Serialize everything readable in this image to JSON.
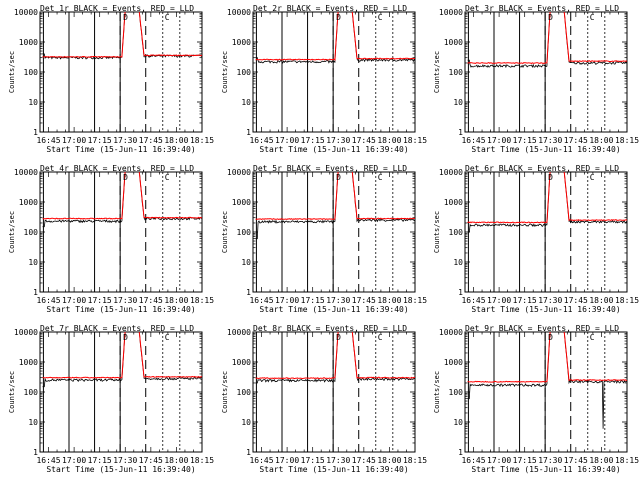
{
  "chart_data": {
    "type": "line",
    "grid": {
      "rows": 3,
      "cols": 3
    },
    "y_scale": "log",
    "ylim": [
      1,
      10000
    ],
    "y_tick_labels": [
      "1",
      "10",
      "100",
      "1000",
      "10000"
    ],
    "ylabel": "Counts/sec",
    "colors": {
      "events": "#000000",
      "lld": "#ff0000",
      "background": "#ffffff"
    },
    "panels": [
      {
        "title": "Det 1r BLACK = Events, RED = LLD",
        "xlabel": "Start Time (15-Jun-11 16:39:40)",
        "x_tick_labels": [
          "16:45",
          "17:00",
          "17:15",
          "17:30",
          "17:45",
          "18:00",
          "18:15"
        ],
        "xlim_min": [
          0,
          95
        ],
        "solid_markers_min": [
          2,
          17,
          32,
          47
        ],
        "long_dash_markers_min": [
          47,
          62
        ],
        "short_dash_markers_min": [
          72,
          82
        ],
        "symbols": [
          "D",
          "C"
        ],
        "baseline": {
          "events_pre": 300,
          "lld_pre": 320,
          "events_post": 340,
          "lld_post": 360,
          "events_start": 400
        },
        "peak": 13000,
        "rise_min": [
          48,
          50
        ],
        "fall_min": [
          58,
          61
        ]
      },
      {
        "title": "Det 2r BLACK = Events, RED = LLD",
        "xlabel": "Start Time (15-Jun-11 16:39:40)",
        "x_tick_labels": [
          "16:45",
          "17:00",
          "17:15",
          "17:30",
          "17:45",
          "18:00",
          "18:15"
        ],
        "xlim_min": [
          0,
          95
        ],
        "solid_markers_min": [
          2,
          17,
          32,
          47
        ],
        "long_dash_markers_min": [
          47,
          62
        ],
        "short_dash_markers_min": [
          72,
          82
        ],
        "symbols": [
          "D",
          "C"
        ],
        "baseline": {
          "events_pre": 220,
          "lld_pre": 260,
          "events_post": 250,
          "lld_post": 280,
          "events_start": 300
        },
        "peak": 13000,
        "rise_min": [
          48,
          50
        ],
        "fall_min": [
          58,
          61
        ]
      },
      {
        "title": "Det 3r BLACK = Events, RED = LLD",
        "xlabel": "Start Time (15-Jun-11 16:39:40)",
        "x_tick_labels": [
          "16:45",
          "17:00",
          "17:15",
          "17:30",
          "17:45",
          "18:00",
          "18:15"
        ],
        "xlim_min": [
          0,
          95
        ],
        "solid_markers_min": [
          2,
          17,
          32,
          47
        ],
        "long_dash_markers_min": [
          47,
          62
        ],
        "short_dash_markers_min": [
          72,
          82
        ],
        "symbols": [
          "D",
          "C"
        ],
        "baseline": {
          "events_pre": 160,
          "lld_pre": 200,
          "events_post": 200,
          "lld_post": 230,
          "events_start": 250
        },
        "peak": 13000,
        "rise_min": [
          48,
          50
        ],
        "fall_min": [
          58,
          61
        ]
      },
      {
        "title": "Det 4r BLACK = Events, RED = LLD",
        "xlabel": "Start Time (15-Jun-11 16:39:40)",
        "x_tick_labels": [
          "16:45",
          "17:00",
          "17:15",
          "17:30",
          "17:45",
          "18:00",
          "18:15"
        ],
        "xlim_min": [
          0,
          95
        ],
        "solid_markers_min": [
          2,
          17,
          32,
          47
        ],
        "long_dash_markers_min": [
          47,
          62
        ],
        "short_dash_markers_min": [
          72,
          82
        ],
        "symbols": [
          "D",
          "C"
        ],
        "baseline": {
          "events_pre": 230,
          "lld_pre": 280,
          "events_post": 280,
          "lld_post": 300,
          "events_start": 150
        },
        "peak": 13000,
        "rise_min": [
          48,
          50
        ],
        "fall_min": [
          58,
          61
        ]
      },
      {
        "title": "Det 5r BLACK = Events, RED = LLD",
        "xlabel": "Start Time (15-Jun-11 16:39:40)",
        "x_tick_labels": [
          "16:45",
          "17:00",
          "17:15",
          "17:30",
          "17:45",
          "18:00",
          "18:15"
        ],
        "xlim_min": [
          0,
          95
        ],
        "solid_markers_min": [
          2,
          17,
          32,
          47
        ],
        "long_dash_markers_min": [
          47,
          62
        ],
        "short_dash_markers_min": [
          72,
          82
        ],
        "symbols": [
          "D",
          "C"
        ],
        "baseline": {
          "events_pre": 220,
          "lld_pre": 270,
          "events_post": 250,
          "lld_post": 280,
          "events_start": 60
        },
        "peak": 13000,
        "rise_min": [
          48,
          50
        ],
        "fall_min": [
          58,
          61
        ]
      },
      {
        "title": "Det 6r BLACK = Events, RED = LLD",
        "xlabel": "Start Time (15-Jun-11 16:39:40)",
        "x_tick_labels": [
          "16:45",
          "17:00",
          "17:15",
          "17:30",
          "17:45",
          "18:00",
          "18:15"
        ],
        "xlim_min": [
          0,
          95
        ],
        "solid_markers_min": [
          2,
          17,
          32,
          47
        ],
        "long_dash_markers_min": [
          47,
          62
        ],
        "short_dash_markers_min": [
          72,
          82
        ],
        "symbols": [
          "D",
          "C"
        ],
        "baseline": {
          "events_pre": 170,
          "lld_pre": 210,
          "events_post": 220,
          "lld_post": 250,
          "events_start": 100
        },
        "peak": 13000,
        "rise_min": [
          48,
          50
        ],
        "fall_min": [
          58,
          61
        ]
      },
      {
        "title": "Det 7r BLACK = Events, RED = LLD",
        "xlabel": "Start Time (15-Jun-11 16:39:40)",
        "x_tick_labels": [
          "16:45",
          "17:00",
          "17:15",
          "17:30",
          "17:45",
          "18:00",
          "18:15"
        ],
        "xlim_min": [
          0,
          95
        ],
        "solid_markers_min": [
          2,
          17,
          32,
          47
        ],
        "long_dash_markers_min": [
          47,
          62
        ],
        "short_dash_markers_min": [
          72,
          82
        ],
        "symbols": [
          "D",
          "C"
        ],
        "baseline": {
          "events_pre": 250,
          "lld_pre": 300,
          "events_post": 280,
          "lld_post": 320,
          "events_start": 150
        },
        "peak": 13000,
        "rise_min": [
          48,
          50
        ],
        "fall_min": [
          58,
          61
        ]
      },
      {
        "title": "Det 8r BLACK = Events, RED = LLD",
        "xlabel": "Start Time (15-Jun-11 16:39:40)",
        "x_tick_labels": [
          "16:45",
          "17:00",
          "17:15",
          "17:30",
          "17:45",
          "18:00",
          "18:15"
        ],
        "xlim_min": [
          0,
          95
        ],
        "solid_markers_min": [
          2,
          17,
          32,
          47
        ],
        "long_dash_markers_min": [
          47,
          62
        ],
        "short_dash_markers_min": [
          72,
          82
        ],
        "symbols": [
          "D",
          "C"
        ],
        "baseline": {
          "events_pre": 240,
          "lld_pre": 290,
          "events_post": 270,
          "lld_post": 300,
          "events_start": 200
        },
        "peak": 13000,
        "rise_min": [
          48,
          50
        ],
        "fall_min": [
          58,
          61
        ]
      },
      {
        "title": "Det 9r BLACK = Events, RED = LLD",
        "xlabel": "Start Time (15-Jun-11 16:39:40)",
        "x_tick_labels": [
          "16:45",
          "17:00",
          "17:15",
          "17:30",
          "17:45",
          "18:00",
          "18:15"
        ],
        "xlim_min": [
          0,
          95
        ],
        "solid_markers_min": [
          2,
          17,
          32,
          47
        ],
        "long_dash_markers_min": [
          47,
          62
        ],
        "short_dash_markers_min": [
          72,
          82
        ],
        "symbols": [
          "D",
          "C"
        ],
        "baseline": {
          "events_pre": 170,
          "lld_pre": 220,
          "events_post": 220,
          "lld_post": 250,
          "events_start": 60
        },
        "peak": 13000,
        "rise_min": [
          48,
          50
        ],
        "fall_min": [
          58,
          61
        ],
        "dropout_min": 81,
        "dropout_value": 6
      }
    ]
  }
}
